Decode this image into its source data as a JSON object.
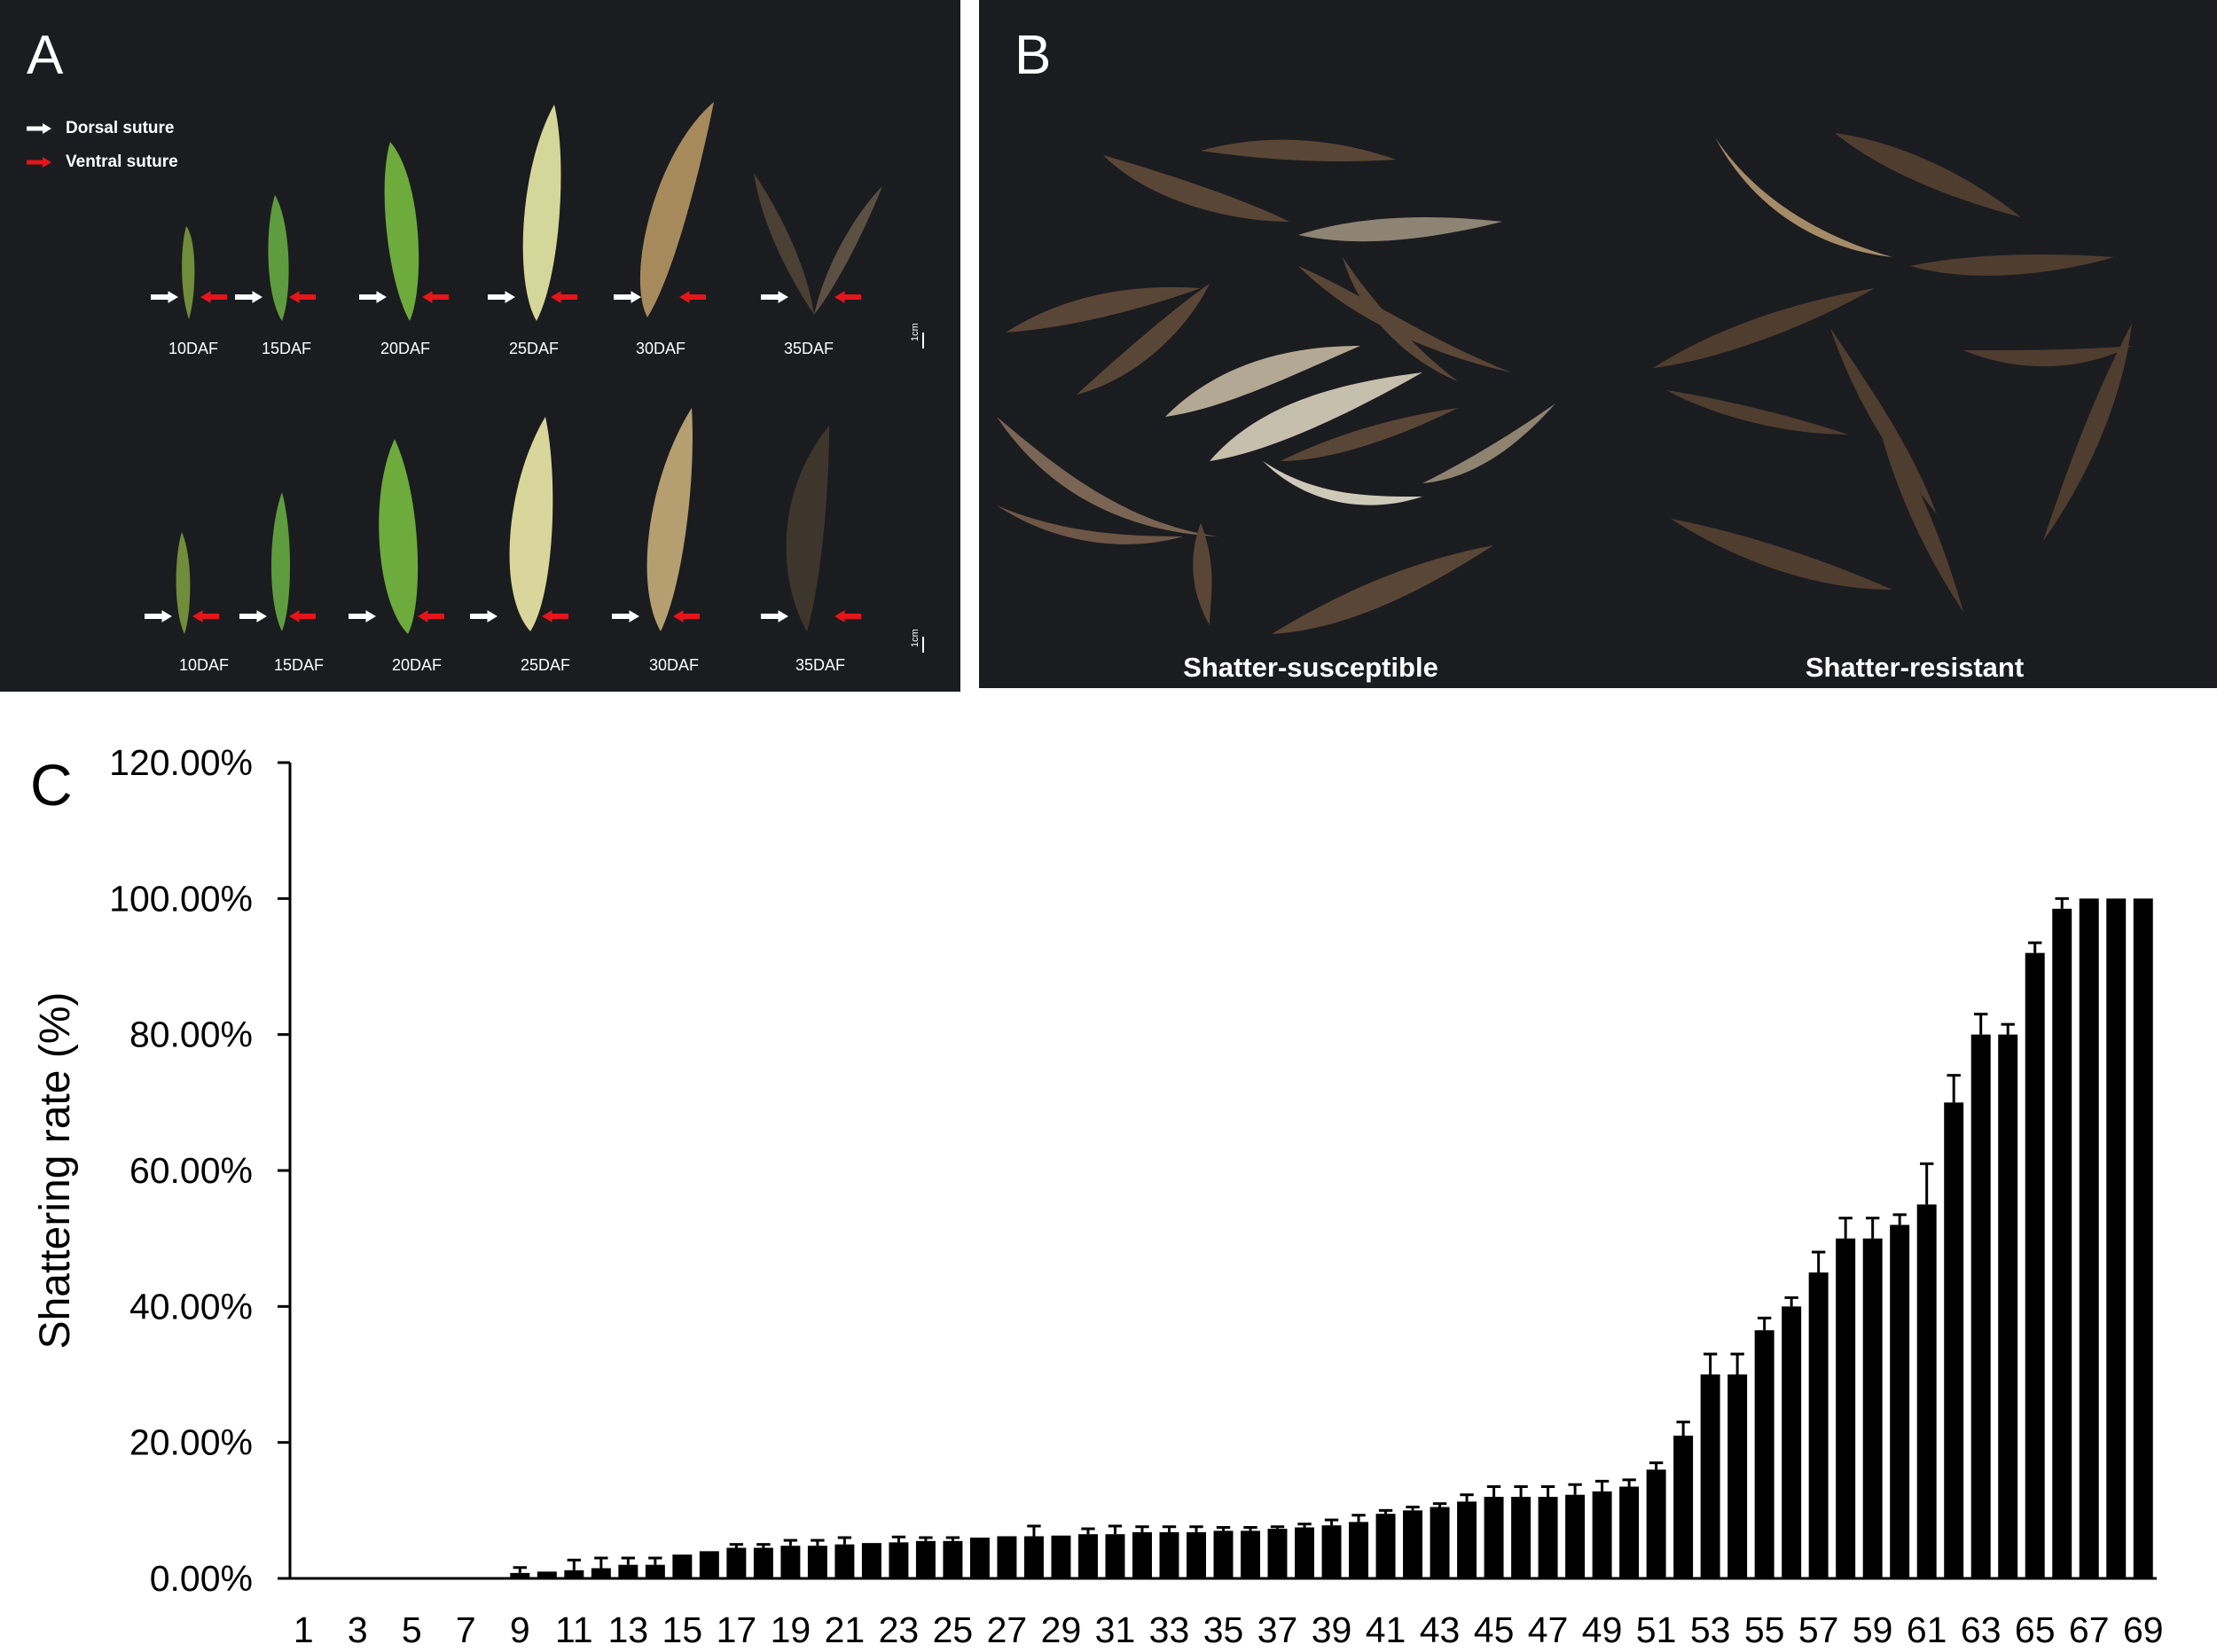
{
  "panel_a": {
    "letter": "A",
    "legend": [
      {
        "label": "Dorsal suture",
        "color": "#ffffff"
      },
      {
        "label": "Ventral suture",
        "color": "#e5151b"
      }
    ],
    "stages_top": [
      "10DAF",
      "15DAF",
      "20DAF",
      "25DAF",
      "30DAF",
      "35DAF"
    ],
    "stages_bottom": [
      "10DAF",
      "15DAF",
      "20DAF",
      "25DAF",
      "30DAF",
      "35DAF"
    ],
    "scale": "1cm"
  },
  "panel_b": {
    "letter": "B",
    "left_caption": "Shatter-susceptible",
    "right_caption": "Shatter-resistant"
  },
  "panel_c": {
    "letter": "C"
  },
  "chart_data": {
    "type": "bar",
    "ylabel": "Shattering rate (%)",
    "xlabel": "",
    "ylim": [
      0,
      120
    ],
    "yticks": [
      "0.00%",
      "20.00%",
      "40.00%",
      "60.00%",
      "80.00%",
      "100.00%",
      "120.00%"
    ],
    "x_tick_labels": [
      "1",
      "3",
      "5",
      "7",
      "9",
      "11",
      "13",
      "15",
      "17",
      "19",
      "21",
      "23",
      "25",
      "27",
      "29",
      "31",
      "33",
      "35",
      "37",
      "39",
      "41",
      "43",
      "45",
      "47",
      "49",
      "51",
      "53",
      "55",
      "57",
      "59",
      "61",
      "63",
      "65",
      "67",
      "69"
    ],
    "categories": [
      1,
      2,
      3,
      4,
      5,
      6,
      7,
      8,
      9,
      10,
      11,
      12,
      13,
      14,
      15,
      16,
      17,
      18,
      19,
      20,
      21,
      22,
      23,
      24,
      25,
      26,
      27,
      28,
      29,
      30,
      31,
      32,
      33,
      34,
      35,
      36,
      37,
      38,
      39,
      40,
      41,
      42,
      43,
      44,
      45,
      46,
      47,
      48,
      49,
      50,
      51,
      52,
      53,
      54,
      55,
      56,
      57,
      58,
      59,
      60,
      61,
      62,
      63,
      64,
      65,
      66,
      67,
      68,
      69
    ],
    "values": [
      0,
      0,
      0,
      0,
      0,
      0,
      0,
      0,
      0.8,
      1,
      1.2,
      1.5,
      2,
      2,
      3.5,
      4,
      4.5,
      4.5,
      4.8,
      4.8,
      5,
      5.2,
      5.3,
      5.5,
      5.5,
      6,
      6.2,
      6.2,
      6.3,
      6.5,
      6.5,
      6.8,
      6.8,
      6.8,
      7,
      7,
      7.3,
      7.5,
      7.8,
      8.3,
      9.5,
      10,
      10.5,
      11.3,
      12,
      12,
      12,
      12.3,
      12.8,
      13.5,
      16,
      21,
      30,
      30,
      36.5,
      40,
      45,
      50,
      50,
      52,
      55,
      70,
      80,
      80,
      92,
      98.5,
      100,
      100,
      100
    ],
    "errors": [
      0,
      0,
      0,
      0,
      0,
      0,
      0,
      0,
      0.8,
      0,
      1.5,
      1.5,
      1,
      1,
      0,
      0,
      0.5,
      0.5,
      0.8,
      0.8,
      1,
      0,
      0.8,
      0.5,
      0.5,
      0,
      0,
      1.5,
      0,
      0.8,
      1.2,
      0.8,
      0.8,
      0.8,
      0.5,
      0.5,
      0.3,
      0.5,
      0.8,
      1,
      0.5,
      0.5,
      0.5,
      1,
      1.5,
      1.5,
      1.5,
      1.5,
      1.5,
      1,
      1,
      2,
      3,
      3,
      1.8,
      1.3,
      3,
      3,
      3,
      1.5,
      6,
      4,
      3,
      1.5,
      1.5,
      1.5,
      0,
      0,
      0
    ],
    "grid": false,
    "color": "#000000"
  }
}
